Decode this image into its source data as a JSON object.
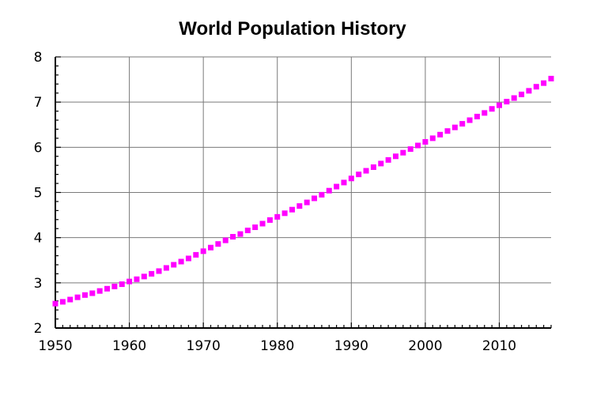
{
  "chart_data": {
    "type": "line",
    "title": "World Population History",
    "xlabel": "",
    "ylabel": "",
    "xlim": [
      1950,
      2017
    ],
    "ylim": [
      2,
      8
    ],
    "x_ticks": [
      1950,
      1960,
      1970,
      1980,
      1990,
      2000,
      2010
    ],
    "y_ticks": [
      2,
      3,
      4,
      5,
      6,
      7,
      8
    ],
    "grid": true,
    "marker": "square",
    "series": [
      {
        "color": "#ff00ff",
        "x": [
          1950,
          1951,
          1952,
          1953,
          1954,
          1955,
          1956,
          1957,
          1958,
          1959,
          1960,
          1961,
          1962,
          1963,
          1964,
          1965,
          1966,
          1967,
          1968,
          1969,
          1970,
          1971,
          1972,
          1973,
          1974,
          1975,
          1976,
          1977,
          1978,
          1979,
          1980,
          1981,
          1982,
          1983,
          1984,
          1985,
          1986,
          1987,
          1988,
          1989,
          1990,
          1991,
          1992,
          1993,
          1994,
          1995,
          1996,
          1997,
          1998,
          1999,
          2000,
          2001,
          2002,
          2003,
          2004,
          2005,
          2006,
          2007,
          2008,
          2009,
          2010,
          2011,
          2012,
          2013,
          2014,
          2015,
          2016,
          2017
        ],
        "y": [
          2.54,
          2.58,
          2.63,
          2.68,
          2.73,
          2.77,
          2.82,
          2.87,
          2.92,
          2.97,
          3.03,
          3.08,
          3.14,
          3.2,
          3.26,
          3.33,
          3.4,
          3.47,
          3.54,
          3.62,
          3.7,
          3.78,
          3.86,
          3.94,
          4.02,
          4.08,
          4.16,
          4.23,
          4.31,
          4.39,
          4.46,
          4.54,
          4.62,
          4.7,
          4.78,
          4.87,
          4.95,
          5.04,
          5.13,
          5.22,
          5.31,
          5.4,
          5.48,
          5.56,
          5.64,
          5.72,
          5.8,
          5.88,
          5.96,
          6.04,
          6.12,
          6.2,
          6.28,
          6.36,
          6.44,
          6.52,
          6.6,
          6.68,
          6.76,
          6.85,
          6.93,
          7.01,
          7.09,
          7.17,
          7.25,
          7.34,
          7.42,
          7.52
        ]
      }
    ]
  }
}
